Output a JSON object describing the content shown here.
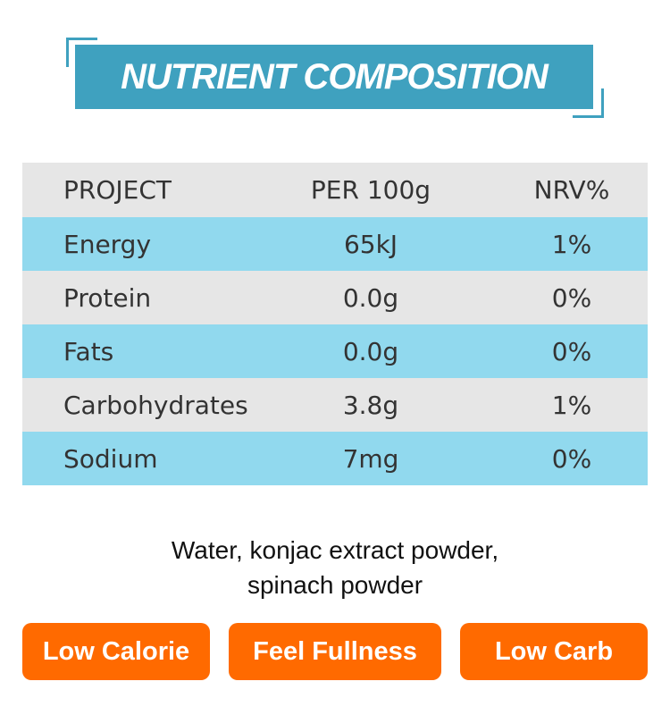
{
  "title": "NUTRIENT COMPOSITION",
  "table": {
    "headers": [
      "PROJECT",
      "PER 100g",
      "NRV%"
    ],
    "rows": [
      [
        "Energy",
        "65kJ",
        "1%"
      ],
      [
        "Protein",
        "0.0g",
        "0%"
      ],
      [
        "Fats",
        "0.0g",
        "0%"
      ],
      [
        "Carbohydrates",
        "3.8g",
        "1%"
      ],
      [
        "Sodium",
        "7mg",
        "0%"
      ]
    ]
  },
  "ingredients": {
    "line1": "Water, konjac extract powder,",
    "line2": "spinach powder"
  },
  "badges": [
    "Low Calorie",
    "Feel Fullness",
    "Low Carb"
  ],
  "colors": {
    "title_bar": "#3fa1bf",
    "row_blue": "#91d9ee",
    "row_gray": "#e6e6e6",
    "badge_orange": "#ff6a00"
  }
}
